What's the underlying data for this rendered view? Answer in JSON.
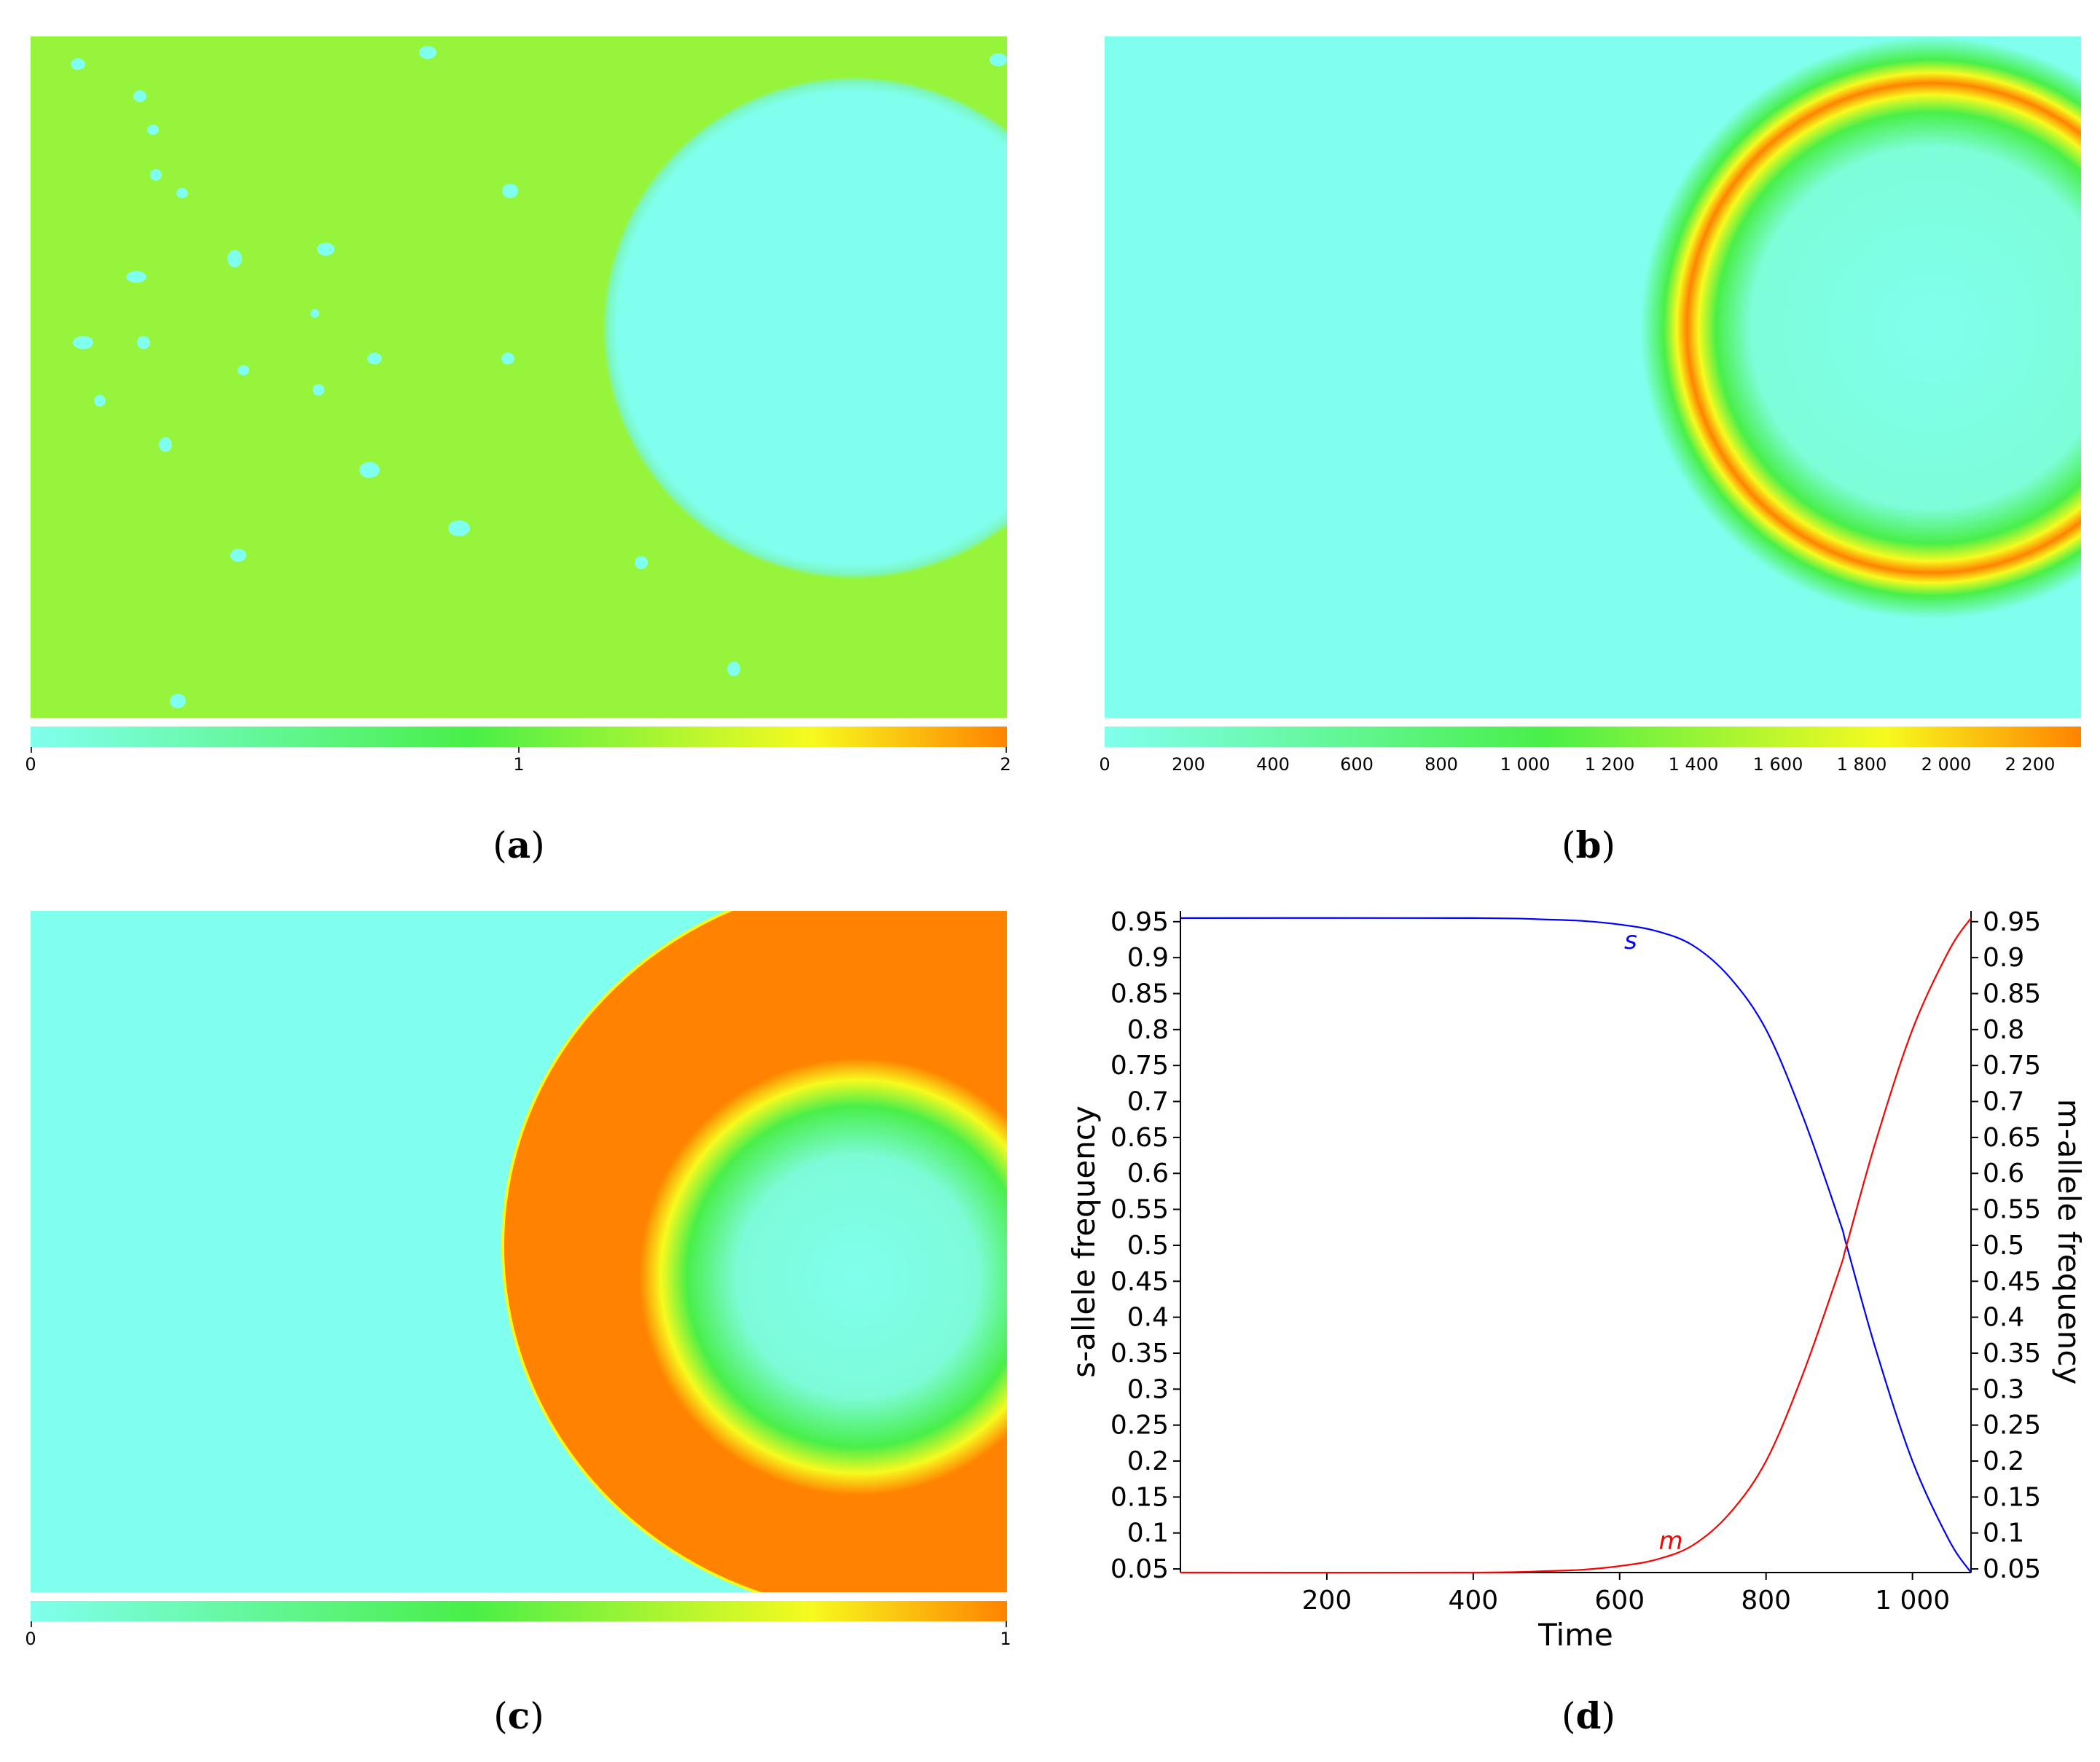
{
  "colors": {
    "cyan": "#80FFEE",
    "lime": "#96F53A",
    "green": "#49EF49",
    "yellow": "#F7FA1E",
    "orange": "#FF8300",
    "s_line": "#0000FF",
    "m_line": "#FF0000"
  },
  "panels": {
    "a": {
      "caption_letter": "a",
      "colorbar_ticks": [
        "0",
        "1",
        "2"
      ]
    },
    "b": {
      "caption_letter": "b",
      "colorbar_ticks": [
        "0",
        "200",
        "400",
        "600",
        "800",
        "1 000",
        "1 200",
        "1 400",
        "1 600",
        "1 800",
        "2 000",
        "2 200"
      ]
    },
    "c": {
      "caption_letter": "c",
      "colorbar_ticks": [
        "0",
        "1"
      ]
    },
    "d": {
      "caption_letter": "d"
    }
  },
  "chart_data": {
    "type": "line",
    "xlabel": "Time",
    "ylabel": "s-allele frequency",
    "y2label": "m-allele frequency",
    "xlim": [
      0,
      1080
    ],
    "ylim": [
      0.045,
      0.965
    ],
    "x_ticks": [
      200,
      400,
      600,
      800,
      1000
    ],
    "x_tick_labels": [
      "200",
      "400",
      "600",
      "800",
      "1 000"
    ],
    "y_ticks": [
      0.05,
      0.1,
      0.15,
      0.2,
      0.25,
      0.3,
      0.35,
      0.4,
      0.45,
      0.5,
      0.55,
      0.6,
      0.65,
      0.7,
      0.75,
      0.8,
      0.85,
      0.9,
      0.95
    ],
    "y_tick_labels": [
      "0.05",
      "0.1",
      "0.15",
      "0.2",
      "0.25",
      "0.3",
      "0.35",
      "0.4",
      "0.45",
      "0.5",
      "0.55",
      "0.6",
      "0.65",
      "0.7",
      "0.75",
      "0.8",
      "0.85",
      "0.9",
      "0.95"
    ],
    "series": [
      {
        "name": "s",
        "x": [
          0,
          400,
          500,
          550,
          600,
          650,
          700,
          750,
          800,
          850,
          900,
          910,
          950,
          1000,
          1050,
          1080
        ],
        "values": [
          0.955,
          0.955,
          0.953,
          0.951,
          0.946,
          0.937,
          0.917,
          0.873,
          0.8,
          0.68,
          0.535,
          0.5,
          0.355,
          0.2,
          0.09,
          0.045
        ]
      },
      {
        "name": "m",
        "x": [
          0,
          400,
          500,
          550,
          600,
          650,
          700,
          750,
          800,
          850,
          900,
          910,
          950,
          1000,
          1050,
          1080
        ],
        "values": [
          0.045,
          0.045,
          0.047,
          0.049,
          0.054,
          0.063,
          0.083,
          0.127,
          0.2,
          0.32,
          0.465,
          0.5,
          0.645,
          0.8,
          0.91,
          0.955
        ]
      }
    ]
  }
}
